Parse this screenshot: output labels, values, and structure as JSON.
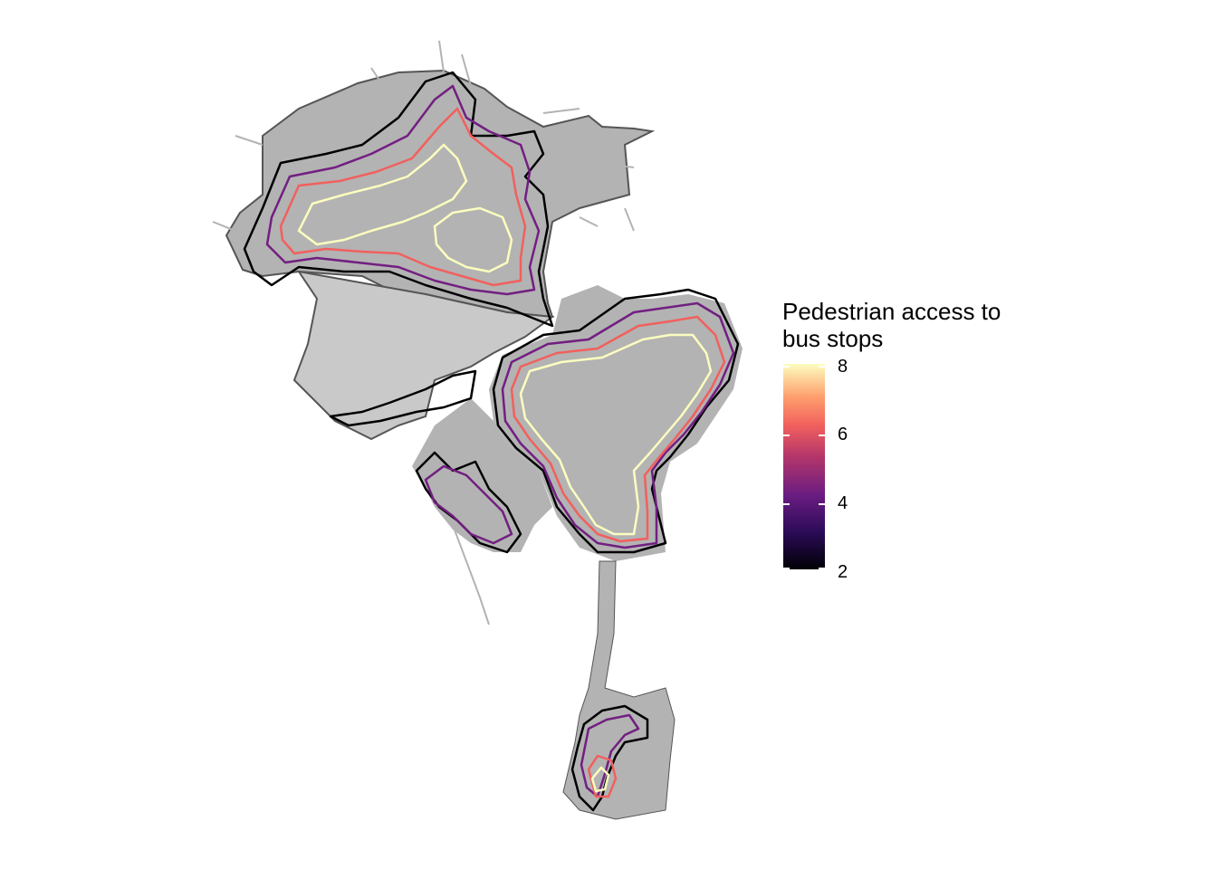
{
  "legend": {
    "title_line1": "Pedestrian access to",
    "title_line2": "bus stops",
    "ticks": [
      {
        "label": "8",
        "value": 8
      },
      {
        "label": "6",
        "value": 6
      },
      {
        "label": "4",
        "value": 4
      },
      {
        "label": "2",
        "value": 2
      }
    ],
    "range": [
      2,
      8
    ]
  },
  "colors": {
    "boundary_fill": "#e6e6e6",
    "boundary_stroke": "#555555",
    "street_network": "#b3b3b3",
    "contour_2": "#000004",
    "contour_4": "#721f81",
    "contour_6": "#f1605d",
    "contour_8": "#fcfdbf"
  },
  "contour_levels": [
    2,
    4,
    6,
    8
  ]
}
